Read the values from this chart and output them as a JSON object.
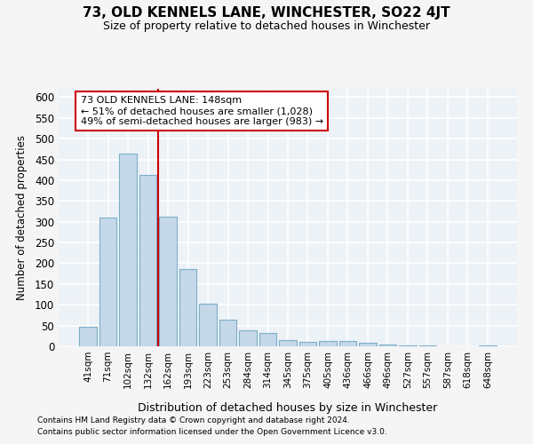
{
  "title": "73, OLD KENNELS LANE, WINCHESTER, SO22 4JT",
  "subtitle": "Size of property relative to detached houses in Winchester",
  "xlabel": "Distribution of detached houses by size in Winchester",
  "ylabel": "Number of detached properties",
  "categories": [
    "41sqm",
    "71sqm",
    "102sqm",
    "132sqm",
    "162sqm",
    "193sqm",
    "223sqm",
    "253sqm",
    "284sqm",
    "314sqm",
    "345sqm",
    "375sqm",
    "405sqm",
    "436sqm",
    "466sqm",
    "496sqm",
    "527sqm",
    "557sqm",
    "587sqm",
    "618sqm",
    "648sqm"
  ],
  "values": [
    47,
    310,
    465,
    413,
    313,
    185,
    103,
    65,
    38,
    32,
    14,
    11,
    13,
    12,
    9,
    5,
    3,
    2,
    1,
    1,
    3
  ],
  "bar_color": "#c5d8ea",
  "bar_edge_color": "#7baec8",
  "highlight_line_color": "#cc0000",
  "annotation_text_line1": "73 OLD KENNELS LANE: 148sqm",
  "annotation_text_line2": "← 51% of detached houses are smaller (1,028)",
  "annotation_text_line3": "49% of semi-detached houses are larger (983) →",
  "annotation_box_color": "#ffffff",
  "annotation_box_edge": "#cc0000",
  "ylim": [
    0,
    620
  ],
  "yticks": [
    0,
    50,
    100,
    150,
    200,
    250,
    300,
    350,
    400,
    450,
    500,
    550,
    600
  ],
  "bg_color": "#edf2f7",
  "grid_color": "#ffffff",
  "fig_bg_color": "#f5f5f5",
  "footer_line1": "Contains HM Land Registry data © Crown copyright and database right 2024.",
  "footer_line2": "Contains public sector information licensed under the Open Government Licence v3.0."
}
